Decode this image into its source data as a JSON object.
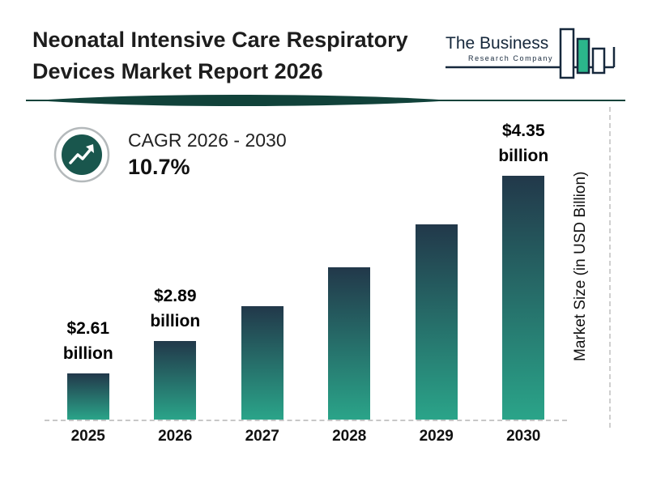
{
  "title": {
    "lines": [
      "Neonatal Intensive Care Respiratory",
      "Devices Market Report 2026"
    ]
  },
  "logo": {
    "name_line1": "The Business",
    "name_line2": "Research Company"
  },
  "cagr": {
    "label": "CAGR 2026 - 2030",
    "value": "10.7%"
  },
  "chart_data": {
    "type": "bar",
    "title": "Neonatal Intensive Care Respiratory Devices Market Report 2026",
    "categories": [
      "2025",
      "2026",
      "2027",
      "2028",
      "2029",
      "2030"
    ],
    "values": [
      2.61,
      2.89,
      3.2,
      3.54,
      3.92,
      4.35
    ],
    "value_labels": [
      [
        "$2.61",
        "billion"
      ],
      [
        "$2.89",
        "billion"
      ],
      null,
      null,
      null,
      [
        "$4.35",
        "billion"
      ]
    ],
    "xlabel": "",
    "ylabel": "Market Size (in USD Billion)",
    "ylim": [
      0,
      4.5
    ],
    "grid": false,
    "legend": "none",
    "cagr_annotation": "CAGR 2026 - 2030 10.7%"
  },
  "colors": {
    "bar_top": "#22384a",
    "bar_bottom": "#2aa489",
    "divider_teal": "#11423a",
    "cagr_circle": "#19564d",
    "logo_green": "#2bb68b",
    "logo_navy": "#16283c"
  }
}
